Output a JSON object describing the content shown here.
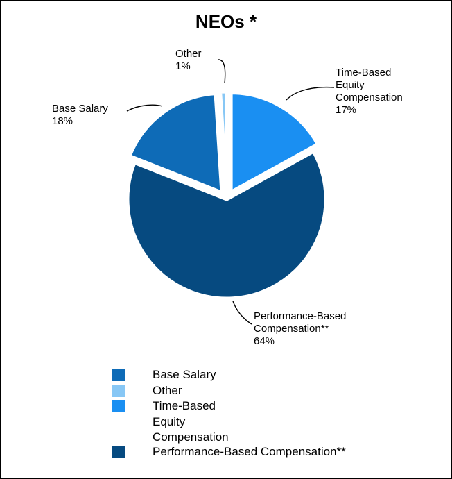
{
  "chart_data": {
    "type": "pie",
    "title": "NEOs *",
    "slices": [
      {
        "label": "Time-Based Equity Compensation",
        "value": 17,
        "value_label": "17%",
        "color": "#1a8ff2"
      },
      {
        "label": "Performance-Based Compensation**",
        "value": 64,
        "value_label": "64%",
        "color": "#064a80"
      },
      {
        "label": "Base Salary",
        "value": 18,
        "value_label": "18%",
        "color": "#0e6bb7"
      },
      {
        "label": "Other",
        "value": 1,
        "value_label": "1%",
        "color": "#87c7f5"
      }
    ],
    "callouts": [
      {
        "lines": [
          "Other",
          "1%"
        ]
      },
      {
        "lines": [
          "Time-Based",
          "Equity",
          "Compensation",
          "17%"
        ]
      },
      {
        "lines": [
          "Base Salary",
          "18%"
        ]
      },
      {
        "lines": [
          "Performance-Based",
          "Compensation**",
          "64%"
        ]
      }
    ],
    "legend": {
      "placement": "bottom",
      "items": [
        {
          "label_lines": [
            "Base Salary"
          ],
          "color": "#0e6bb7"
        },
        {
          "label_lines": [
            "Other"
          ],
          "color": "#87c7f5"
        },
        {
          "label_lines": [
            "Time-Based",
            "Equity",
            "Compensation"
          ],
          "color": "#1a8ff2"
        },
        {
          "label_lines": [
            "Performance-Based Compensation**"
          ],
          "color": "#064a80"
        }
      ]
    }
  }
}
